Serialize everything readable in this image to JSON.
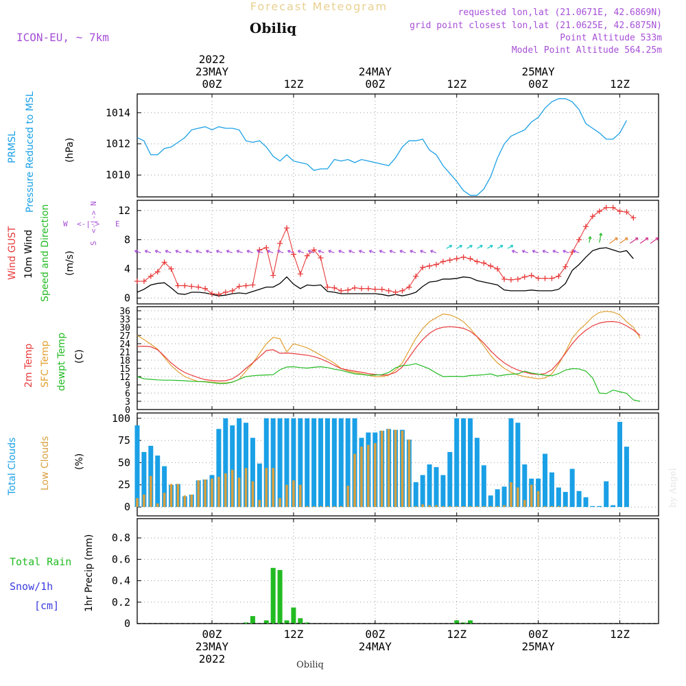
{
  "header": {
    "forecast_title": "Forecast Meteogram",
    "location": "Obiliq",
    "model": "ICON-EU, ~ 7km",
    "requested": "requested lon,lat (21.0671E, 42.6869N)",
    "grid_point": "grid point closest lon,lat (21.0625E, 42.6875N)",
    "point_altitude": "Point Altitude 533m",
    "model_altitude": "Model Point Altitude 564.25m",
    "footer_location": "Obiliq",
    "watermark": "by Angel"
  },
  "colors": {
    "pressure": "#1aa0e6",
    "gust": "#e83a3a",
    "wind": "#000000",
    "temp": "#e83a3a",
    "sfc": "#e0a030",
    "dew": "#22bb22",
    "total_clouds": "#1aa0e6",
    "low_clouds": "#d8a040",
    "rain": "#22bb22",
    "purple": "#a64fd6"
  },
  "time_axis": {
    "top_labels": [
      {
        "id": "d23",
        "day": "23MAY",
        "year": "2022",
        "hour": "00Z",
        "hours": 0
      },
      {
        "id": "h12a",
        "day": "",
        "year": "",
        "hour": "12Z",
        "hours": 12
      },
      {
        "id": "d24",
        "day": "24MAY",
        "year": "",
        "hour": "00Z",
        "hours": 24
      },
      {
        "id": "h12b",
        "day": "",
        "year": "",
        "hour": "12Z",
        "hours": 36
      },
      {
        "id": "d25",
        "day": "25MAY",
        "year": "",
        "hour": "00Z",
        "hours": 48
      },
      {
        "id": "h12c",
        "day": "",
        "year": "",
        "hour": "12Z",
        "hours": 60
      }
    ]
  },
  "panels": {
    "pressure": {
      "label1": "PRMSL",
      "label2": "Pressure Reduced to MSL",
      "unit": "(hPa)"
    },
    "wind": {
      "label_gust": "Wind GUST",
      "label_wind": "10m Wind",
      "label_dir": "Speed and Direction",
      "unit": "(m/s)",
      "compass_n": "N",
      "compass_s": "S",
      "compass_w": "W",
      "compass_e": "E",
      "compass_mid": "<-|->"
    },
    "temp": {
      "label_2m": "2m Temp",
      "label_sfc": "SFC Temp",
      "label_dew": "dewpt Temp",
      "unit": "(C)"
    },
    "clouds": {
      "label_total": "Total Clouds",
      "label_low": "Low Clouds",
      "unit": "(%)"
    },
    "precip": {
      "label_rain": "Total Rain",
      "label_snow": "Snow/1h",
      "label_cm": "[cm]",
      "axis_label": "1hr Precip (mm)"
    }
  },
  "chart_data": [
    {
      "id": "pressure",
      "type": "line",
      "title": "PRMSL Pressure Reduced to MSL",
      "ylabel": "(hPa)",
      "ylim": [
        1008.6,
        1015.2
      ],
      "yticks": [
        1010,
        1012,
        1014
      ],
      "x_hours": [
        -11,
        -10,
        -9,
        -8,
        -7,
        -6,
        -5,
        -4,
        -3,
        -2,
        -1,
        0,
        1,
        2,
        3,
        4,
        5,
        6,
        7,
        8,
        9,
        10,
        11,
        12,
        13,
        14,
        15,
        16,
        17,
        18,
        19,
        20,
        21,
        22,
        23,
        24,
        25,
        26,
        27,
        28,
        29,
        30,
        31,
        32,
        33,
        34,
        35,
        36,
        37,
        38,
        39,
        40,
        41,
        42,
        43,
        44,
        45,
        46,
        47,
        48,
        49,
        50,
        51,
        52,
        53,
        54,
        55,
        56,
        57,
        58,
        59,
        60,
        61,
        62,
        63,
        64,
        65
      ],
      "series": [
        {
          "name": "PRMSL",
          "values": [
            1012.4,
            1012.2,
            1011.3,
            1011.3,
            1011.7,
            1011.8,
            1012.1,
            1012.4,
            1012.9,
            1013.0,
            1013.1,
            1012.9,
            1013.1,
            1013.0,
            1013.0,
            1012.9,
            1012.2,
            1012.1,
            1012.2,
            1011.8,
            1011.2,
            1010.9,
            1011.3,
            1010.9,
            1010.8,
            1010.7,
            1010.3,
            1010.4,
            1010.4,
            1011.0,
            1010.9,
            1011.0,
            1010.8,
            1011.0,
            1010.9,
            1010.8,
            1010.7,
            1010.6,
            1011.1,
            1011.8,
            1012.2,
            1012.2,
            1012.3,
            1011.6,
            1011.3,
            1010.6,
            1010.1,
            1009.6,
            1009.0,
            1008.7,
            1008.7,
            1009.1,
            1009.9,
            1011.1,
            1012.0,
            1012.5,
            1012.7,
            1012.9,
            1013.4,
            1013.7,
            1014.3,
            1014.7,
            1014.9,
            1014.9,
            1014.7,
            1014.2,
            1013.3,
            1013.0,
            1012.7,
            1012.3,
            1012.3,
            1012.7,
            1013.5
          ]
        }
      ]
    },
    {
      "id": "wind",
      "type": "line",
      "title": "Wind GUST / 10m Wind Speed and Direction",
      "ylabel": "(m/s)",
      "ylim": [
        -0.8,
        13.4
      ],
      "yticks": [
        0,
        4,
        8,
        12
      ],
      "x_hours": [
        -11,
        -10,
        -9,
        -8,
        -7,
        -6,
        -5,
        -4,
        -3,
        -2,
        -1,
        0,
        1,
        2,
        3,
        4,
        5,
        6,
        7,
        8,
        9,
        10,
        11,
        12,
        13,
        14,
        15,
        16,
        17,
        18,
        19,
        20,
        21,
        22,
        23,
        24,
        25,
        26,
        27,
        28,
        29,
        30,
        31,
        32,
        33,
        34,
        35,
        36,
        37,
        38,
        39,
        40,
        41,
        42,
        43,
        44,
        45,
        46,
        47,
        48,
        49,
        50,
        51,
        52,
        53,
        54,
        55,
        56,
        57,
        58,
        59,
        60,
        61,
        62,
        63,
        64,
        65
      ],
      "series": [
        {
          "name": "Wind GUST",
          "values": [
            2.3,
            2.3,
            3.0,
            3.6,
            4.9,
            4.0,
            1.7,
            1.7,
            1.6,
            1.5,
            1.3,
            0.6,
            0.5,
            0.8,
            1.0,
            1.6,
            1.7,
            1.8,
            6.6,
            6.9,
            3.1,
            7.5,
            9.6,
            6.0,
            3.3,
            5.8,
            6.6,
            5.5,
            1.5,
            1.4,
            1.0,
            1.1,
            1.4,
            1.3,
            1.3,
            1.2,
            1.2,
            1.0,
            0.8,
            1.0,
            1.5,
            3.0,
            4.2,
            4.4,
            4.6,
            5.0,
            5.2,
            5.4,
            5.6,
            5.4,
            5.0,
            4.8,
            4.4,
            4.0,
            2.6,
            2.5,
            2.6,
            2.9,
            3.1,
            2.7,
            2.7,
            2.7,
            3.0,
            4.3,
            6.3,
            8.0,
            9.8,
            11.2,
            11.9,
            12.4,
            12.4,
            11.9,
            11.8,
            11.0
          ]
        },
        {
          "name": "10m Wind",
          "values": [
            0.8,
            1.2,
            1.8,
            2.0,
            2.1,
            1.4,
            0.6,
            0.5,
            0.8,
            0.8,
            0.7,
            0.5,
            0.3,
            0.4,
            0.6,
            0.7,
            0.6,
            0.9,
            1.2,
            1.5,
            1.5,
            2.0,
            2.9,
            1.9,
            1.3,
            1.8,
            1.7,
            1.8,
            0.9,
            0.8,
            0.6,
            0.6,
            0.6,
            0.6,
            0.6,
            0.6,
            0.5,
            0.3,
            0.5,
            0.3,
            0.5,
            0.8,
            1.6,
            2.2,
            2.3,
            2.6,
            2.6,
            2.7,
            2.9,
            2.8,
            2.4,
            2.2,
            2.0,
            1.8,
            1.1,
            1.0,
            1.0,
            1.0,
            1.1,
            1.0,
            1.0,
            1.0,
            1.2,
            2.0,
            3.8,
            4.6,
            5.6,
            6.5,
            6.8,
            6.9,
            6.6,
            6.3,
            6.5,
            5.4
          ]
        }
      ]
    },
    {
      "id": "temperature",
      "type": "line",
      "title": "2m Temp / SFC Temp / dewpt Temp",
      "ylabel": "(C)",
      "ylim": [
        0,
        37.5
      ],
      "yticks": [
        0,
        3,
        6,
        9,
        12,
        15,
        18,
        21,
        24,
        27,
        30,
        33,
        36
      ],
      "x_hours": [
        -11,
        -10,
        -9,
        -8,
        -7,
        -6,
        -5,
        -4,
        -3,
        -2,
        -1,
        0,
        1,
        2,
        3,
        4,
        5,
        6,
        7,
        8,
        9,
        10,
        11,
        12,
        13,
        14,
        15,
        16,
        17,
        18,
        19,
        20,
        21,
        22,
        23,
        24,
        25,
        26,
        27,
        28,
        29,
        30,
        31,
        32,
        33,
        34,
        35,
        36,
        37,
        38,
        39,
        40,
        41,
        42,
        43,
        44,
        45,
        46,
        47,
        48,
        49,
        50,
        51,
        52,
        53,
        54,
        55,
        56,
        57,
        58,
        59,
        60,
        61,
        62,
        63,
        64,
        65
      ],
      "series": [
        {
          "name": "2m Temp",
          "values": [
            23.0,
            23.1,
            22.9,
            21.8,
            19.5,
            17.0,
            15.0,
            13.5,
            12.5,
            11.6,
            10.9,
            10.6,
            10.4,
            10.5,
            11.2,
            12.8,
            15.0,
            17.0,
            19.2,
            21.5,
            21.8,
            20.5,
            20.6,
            20.4,
            20.1,
            19.8,
            19.3,
            18.5,
            17.4,
            16.1,
            14.9,
            14.4,
            14.0,
            13.6,
            13.1,
            12.8,
            12.5,
            12.7,
            13.5,
            15.5,
            19.0,
            22.5,
            25.5,
            27.8,
            29.3,
            30.0,
            30.2,
            30.0,
            29.6,
            28.5,
            26.6,
            24.2,
            21.4,
            19.0,
            17.0,
            15.5,
            14.4,
            13.6,
            13.0,
            12.8,
            13.1,
            14.5,
            17.2,
            20.5,
            24.0,
            26.8,
            28.9,
            30.5,
            31.5,
            32.0,
            32.1,
            31.7,
            30.5,
            29.0,
            27.0
          ]
        },
        {
          "name": "SFC Temp",
          "values": [
            27.0,
            25.5,
            23.8,
            22.0,
            19.0,
            16.0,
            13.8,
            12.0,
            11.0,
            10.2,
            10.2,
            10.0,
            9.7,
            9.7,
            10.0,
            11.0,
            14.0,
            16.8,
            20.5,
            24.0,
            26.3,
            25.8,
            21.0,
            24.0,
            23.3,
            22.5,
            21.2,
            19.8,
            18.4,
            16.9,
            15.0,
            14.0,
            13.5,
            13.0,
            12.5,
            12.0,
            12.0,
            12.5,
            14.4,
            17.0,
            21.5,
            26.0,
            29.5,
            32.0,
            33.5,
            34.8,
            34.5,
            33.5,
            32.0,
            29.5,
            26.5,
            23.2,
            19.7,
            17.0,
            15.0,
            13.6,
            12.6,
            12.0,
            11.6,
            11.2,
            11.5,
            13.0,
            16.5,
            21.0,
            26.0,
            29.0,
            31.2,
            33.8,
            35.4,
            35.8,
            35.5,
            34.5,
            32.0,
            30.0,
            26.0
          ]
        },
        {
          "name": "dewpt Temp",
          "values": [
            12.0,
            11.2,
            11.0,
            10.8,
            10.7,
            10.7,
            10.6,
            10.5,
            10.3,
            10.2,
            10.1,
            9.8,
            9.5,
            9.5,
            10.0,
            11.0,
            12.0,
            12.3,
            12.5,
            12.6,
            12.7,
            14.5,
            15.5,
            15.6,
            15.3,
            15.1,
            15.4,
            15.6,
            15.3,
            14.7,
            14.3,
            13.6,
            13.0,
            12.8,
            12.5,
            12.6,
            12.7,
            13.5,
            15.2,
            16.0,
            16.2,
            16.7,
            15.8,
            14.8,
            13.3,
            12.0,
            12.1,
            12.1,
            12.0,
            12.4,
            12.5,
            12.7,
            13.0,
            12.2,
            12.6,
            12.9,
            13.0,
            14.0,
            13.3,
            12.9,
            12.5,
            12.3,
            13.1,
            14.4,
            14.9,
            14.8,
            14.0,
            11.5,
            6.0,
            5.8,
            7.1,
            6.5,
            5.9,
            3.5,
            3.0
          ]
        }
      ]
    },
    {
      "id": "clouds",
      "type": "bar",
      "title": "Total Clouds / Low Clouds",
      "ylabel": "(%)",
      "ylim": [
        -10,
        106
      ],
      "yticks": [
        0,
        25,
        50,
        75,
        100
      ],
      "x_hours": [
        -11,
        -10,
        -9,
        -8,
        -7,
        -6,
        -5,
        -4,
        -3,
        -2,
        -1,
        0,
        1,
        2,
        3,
        4,
        5,
        6,
        7,
        8,
        9,
        10,
        11,
        12,
        13,
        14,
        15,
        16,
        17,
        18,
        19,
        20,
        21,
        22,
        23,
        24,
        25,
        26,
        27,
        28,
        29,
        30,
        31,
        32,
        33,
        34,
        35,
        36,
        37,
        38,
        39,
        40,
        41,
        42,
        43,
        44,
        45,
        46,
        47,
        48,
        49,
        50,
        51,
        52,
        53,
        54,
        55,
        56,
        57,
        58,
        59,
        60,
        61,
        62,
        63,
        64,
        65
      ],
      "series": [
        {
          "name": "Total Clouds",
          "values": [
            92,
            62,
            69,
            58,
            46,
            25,
            26,
            12,
            14,
            30,
            31,
            36,
            88,
            100,
            92,
            100,
            95,
            78,
            49,
            100,
            100,
            100,
            100,
            100,
            100,
            100,
            100,
            100,
            100,
            100,
            100,
            100,
            100,
            78,
            84,
            84,
            86,
            88,
            87,
            87,
            76,
            28,
            36,
            48,
            45,
            36,
            62,
            100,
            100,
            100,
            78,
            47,
            13,
            20,
            23,
            100,
            95,
            48,
            32,
            32,
            60,
            39,
            22,
            17,
            43,
            18,
            11,
            1,
            1,
            29,
            2,
            96,
            68,
            0,
            0
          ]
        },
        {
          "name": "Low Clouds",
          "values": [
            10,
            14,
            35,
            4,
            16,
            26,
            26,
            13,
            14,
            30,
            31,
            32,
            34,
            38,
            42,
            33,
            44,
            29,
            8,
            44,
            44,
            10,
            25,
            30,
            25,
            1,
            1,
            1,
            1,
            1,
            1,
            24,
            60,
            68,
            70,
            72,
            86,
            88,
            87,
            86,
            76,
            1,
            3,
            2,
            2,
            1,
            1,
            1,
            1,
            1,
            1,
            1,
            1,
            1,
            2,
            28,
            22,
            8,
            25,
            18,
            1,
            1,
            1,
            1,
            0,
            0,
            0,
            0,
            0,
            0,
            0,
            0,
            0,
            0,
            0
          ]
        }
      ]
    },
    {
      "id": "precip",
      "type": "bar",
      "title": "1hr Precip (mm)",
      "ylabel": "1hr Precip (mm)",
      "ylim": [
        0,
        0.98
      ],
      "yticks": [
        0,
        0.2,
        0.4,
        0.6,
        0.8
      ],
      "x_hours": [
        5,
        6,
        8,
        9,
        10,
        11,
        12,
        13,
        14,
        15,
        36,
        37,
        38
      ],
      "series": [
        {
          "name": "Total Rain",
          "values": [
            0.01,
            0.07,
            0.03,
            0.52,
            0.5,
            0.03,
            0.15,
            0.05,
            0.01,
            0.0,
            0.03,
            0.01,
            0.03
          ]
        }
      ]
    }
  ]
}
